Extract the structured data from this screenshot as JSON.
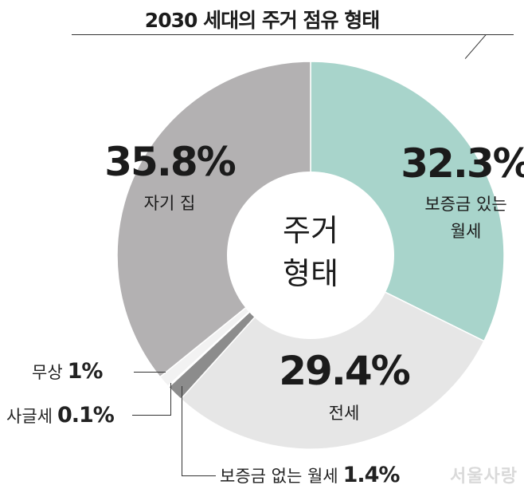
{
  "title": "2030 세대의 주거 점유 형태",
  "center_label": [
    "주거",
    "형태"
  ],
  "watermark": "서울사랑",
  "chart_data": {
    "type": "pie",
    "title": "2030 세대의 주거 점유 형태",
    "donut": true,
    "center_text": "주거 형태",
    "slices": [
      {
        "label": "보증금 있는 월세",
        "value": 32.3,
        "display": "32.3%",
        "color": "#a8d4cb"
      },
      {
        "label": "전세",
        "value": 29.4,
        "display": "29.4%",
        "color": "#e6e6e6"
      },
      {
        "label": "보증금 없는 월세",
        "value": 1.4,
        "display": "1.4%",
        "color": "#8c8c8c"
      },
      {
        "label": "사글세",
        "value": 0.1,
        "display": "0.1%",
        "color": "#5a5a5a"
      },
      {
        "label": "무상",
        "value": 1,
        "display": "1%",
        "color": "#f2f2f2"
      },
      {
        "label": "자기 집",
        "value": 35.8,
        "display": "35.8%",
        "color": "#b3b1b2"
      }
    ]
  }
}
